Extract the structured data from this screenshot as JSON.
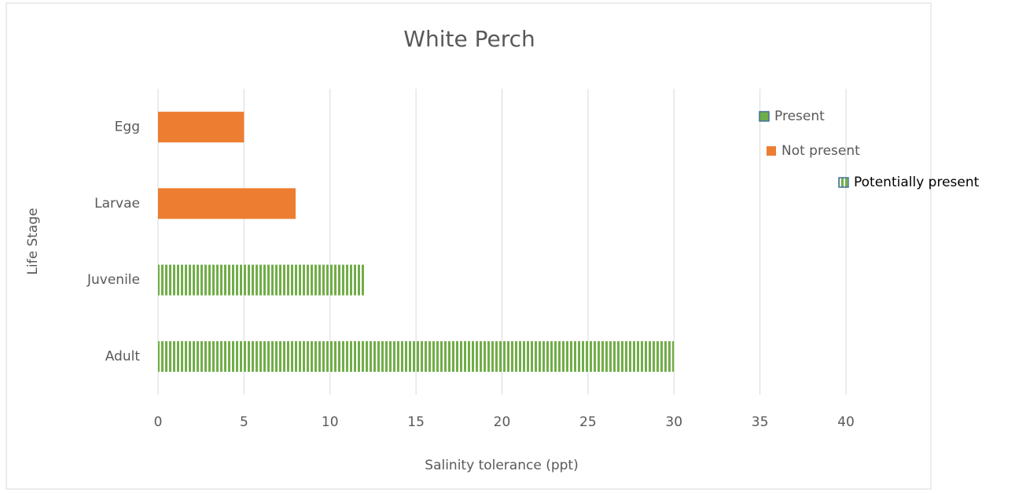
{
  "chart_data": {
    "type": "barh",
    "title": "White Perch",
    "xlabel": "Salinity tolerance (ppt)",
    "ylabel": "Life Stage",
    "categories": [
      "Egg",
      "Larvae",
      "Juvenile",
      "Adult"
    ],
    "series": [
      {
        "name": "Present",
        "color": "#70ad47",
        "edgecolor": "#41719c",
        "values": [
          null,
          null,
          null,
          null
        ]
      },
      {
        "name": "Not present",
        "color": "#ed7d31",
        "values": [
          5,
          8,
          null,
          null
        ]
      },
      {
        "name": "Potentially present",
        "color": "#70ad47",
        "edgecolor": "#41719c",
        "hatch": "vertical",
        "values": [
          null,
          null,
          12,
          30
        ]
      }
    ],
    "xlim": [
      0,
      40
    ],
    "xticks": [
      0,
      5,
      10,
      15,
      20,
      25,
      30,
      35,
      40
    ],
    "grid": true
  }
}
